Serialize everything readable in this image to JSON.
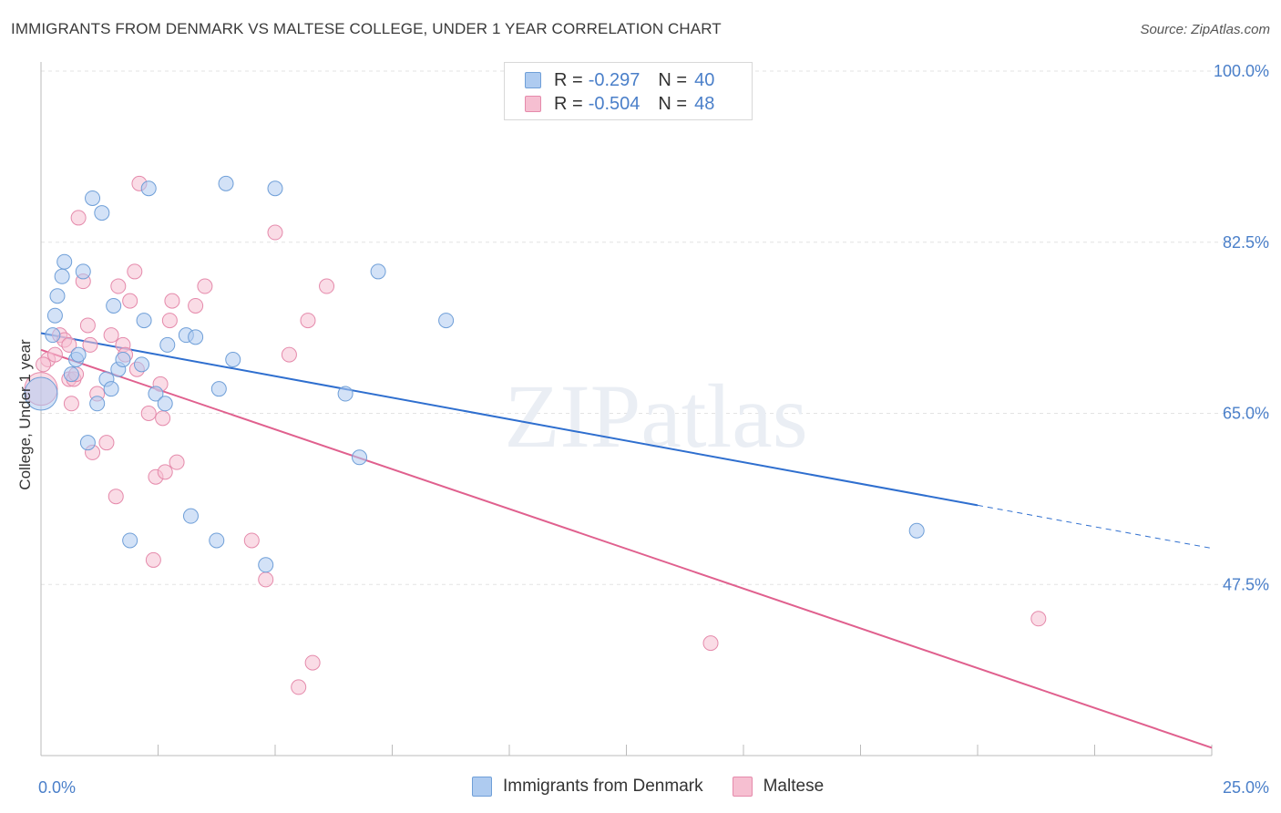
{
  "header": {
    "title": "IMMIGRANTS FROM DENMARK VS MALTESE COLLEGE, UNDER 1 YEAR CORRELATION CHART",
    "source": "Source: ZipAtlas.com"
  },
  "watermark": "ZIPatlas",
  "legend": {
    "rows": [
      {
        "r_label": "R =",
        "r_value": "-0.297",
        "n_label": "N =",
        "n_value": "40"
      },
      {
        "r_label": "R =",
        "r_value": "-0.504",
        "n_label": "N =",
        "n_value": "48"
      }
    ]
  },
  "bottom_legend": {
    "items": [
      "Immigrants from Denmark",
      "Maltese"
    ]
  },
  "colors": {
    "series1_fill": "#aecbf0",
    "series1_stroke": "#6f9fd8",
    "series1_line": "#2f6fcf",
    "series2_fill": "#f6bfd1",
    "series2_stroke": "#e58aab",
    "series2_line": "#e0608e",
    "tick_text": "#4a7fc9",
    "grid": "#e3e3e3"
  },
  "chart_data": {
    "type": "scatter",
    "title": "IMMIGRANTS FROM DENMARK VS MALTESE COLLEGE, UNDER 1 YEAR CORRELATION CHART",
    "xlabel": "",
    "ylabel": "College, Under 1 year",
    "xlim": [
      0,
      25
    ],
    "ylim": [
      30,
      100
    ],
    "x_tick_labels": [
      "0.0%",
      "25.0%"
    ],
    "y_ticks": [
      47.5,
      65.0,
      82.5,
      100.0
    ],
    "y_tick_labels": [
      "47.5%",
      "65.0%",
      "82.5%",
      "100.0%"
    ],
    "grid": true,
    "series": [
      {
        "name": "Immigrants from Denmark",
        "r": -0.297,
        "n": 40,
        "trend": {
          "x0": 0.0,
          "y0": 73.2,
          "x1": 20.0,
          "y1": 55.6,
          "dashed_to_x": 25.0,
          "dashed_to_y": 51.2
        },
        "points": [
          [
            0.0,
            67.0,
            "large"
          ],
          [
            0.25,
            73.0
          ],
          [
            0.3,
            75.0
          ],
          [
            0.35,
            77.0
          ],
          [
            0.45,
            79.0
          ],
          [
            0.5,
            80.5
          ],
          [
            0.65,
            69.0
          ],
          [
            0.75,
            70.5
          ],
          [
            0.8,
            71.0
          ],
          [
            0.9,
            79.5
          ],
          [
            1.0,
            62.0
          ],
          [
            1.1,
            87.0
          ],
          [
            1.2,
            66.0
          ],
          [
            1.3,
            85.5
          ],
          [
            1.4,
            68.5
          ],
          [
            1.5,
            67.5
          ],
          [
            1.55,
            76.0
          ],
          [
            1.65,
            69.5
          ],
          [
            1.75,
            70.5
          ],
          [
            1.9,
            52.0
          ],
          [
            2.15,
            70.0
          ],
          [
            2.2,
            74.5
          ],
          [
            2.3,
            88.0
          ],
          [
            2.45,
            67.0
          ],
          [
            2.65,
            66.0
          ],
          [
            2.7,
            72.0
          ],
          [
            3.1,
            73.0
          ],
          [
            3.2,
            54.5
          ],
          [
            3.3,
            72.8
          ],
          [
            3.75,
            52.0
          ],
          [
            3.8,
            67.5
          ],
          [
            3.95,
            88.5
          ],
          [
            4.1,
            70.5
          ],
          [
            4.8,
            49.5
          ],
          [
            5.0,
            88.0
          ],
          [
            6.5,
            67.0
          ],
          [
            6.8,
            60.5
          ],
          [
            7.2,
            79.5
          ],
          [
            8.65,
            74.5
          ],
          [
            18.7,
            53.0
          ]
        ]
      },
      {
        "name": "Maltese",
        "r": -0.504,
        "n": 48,
        "trend": {
          "x0": 0.0,
          "y0": 71.5,
          "x1": 25.0,
          "y1": 30.8
        },
        "points": [
          [
            0.0,
            67.5,
            "large"
          ],
          [
            0.15,
            70.5
          ],
          [
            0.3,
            71.0
          ],
          [
            0.4,
            73.0
          ],
          [
            0.5,
            72.5
          ],
          [
            0.6,
            68.5
          ],
          [
            0.6,
            72.0
          ],
          [
            0.65,
            66.0
          ],
          [
            0.7,
            68.5
          ],
          [
            0.75,
            69.0
          ],
          [
            0.8,
            85.0
          ],
          [
            0.9,
            78.5
          ],
          [
            1.0,
            74.0
          ],
          [
            1.05,
            72.0
          ],
          [
            1.1,
            61.0
          ],
          [
            1.2,
            67.0
          ],
          [
            1.4,
            62.0
          ],
          [
            1.5,
            73.0
          ],
          [
            1.6,
            56.5
          ],
          [
            1.65,
            78.0
          ],
          [
            1.75,
            72.0
          ],
          [
            1.8,
            71.0
          ],
          [
            1.9,
            76.5
          ],
          [
            2.0,
            79.5
          ],
          [
            2.05,
            69.5
          ],
          [
            2.1,
            88.5
          ],
          [
            2.3,
            65.0
          ],
          [
            2.4,
            50.0
          ],
          [
            2.45,
            58.5
          ],
          [
            2.55,
            68.0
          ],
          [
            2.6,
            64.5
          ],
          [
            2.65,
            59.0
          ],
          [
            2.75,
            74.5
          ],
          [
            2.8,
            76.5
          ],
          [
            2.9,
            60.0
          ],
          [
            3.3,
            76.0
          ],
          [
            3.5,
            78.0
          ],
          [
            4.5,
            52.0
          ],
          [
            4.8,
            48.0
          ],
          [
            5.0,
            83.5
          ],
          [
            5.3,
            71.0
          ],
          [
            5.5,
            37.0
          ],
          [
            5.7,
            74.5
          ],
          [
            5.8,
            39.5
          ],
          [
            6.1,
            78.0
          ],
          [
            14.3,
            41.5
          ],
          [
            21.3,
            44.0
          ],
          [
            0.05,
            70.0
          ]
        ]
      }
    ]
  }
}
